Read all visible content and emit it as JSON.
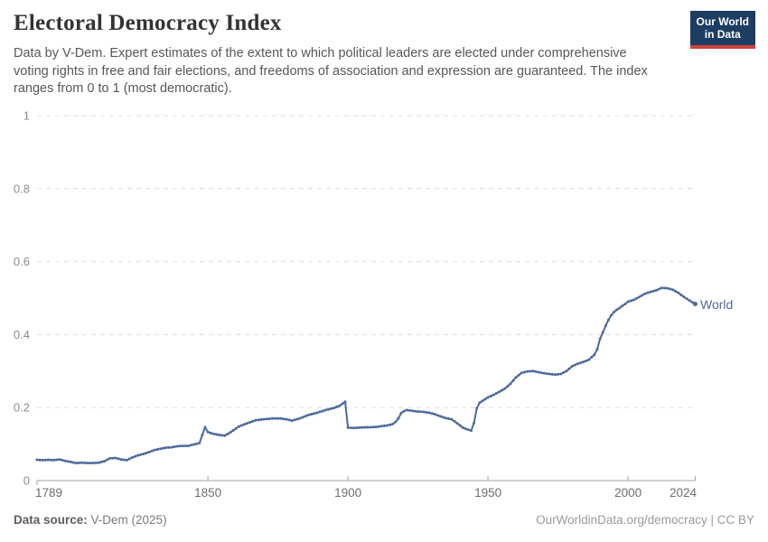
{
  "header": {
    "title": "Electoral Democracy Index",
    "subtitle": "Data by V-Dem. Expert estimates of the extent to which political leaders are elected under comprehensive voting rights in free and fair elections, and freedoms of association and expression are guaranteed. The index ranges from 0 to 1 (most democratic).",
    "logo": {
      "line1": "Our World",
      "line2": "in Data"
    }
  },
  "chart_data": {
    "type": "line",
    "title": "Electoral Democracy Index",
    "xlabel": "",
    "ylabel": "",
    "xlim": [
      1789,
      2024
    ],
    "ylim": [
      0,
      1
    ],
    "grid": "horizontal-dashed",
    "legend_position": "end-of-line",
    "x_ticks": [
      {
        "year": 1789,
        "label": "1789",
        "align": "start"
      },
      {
        "year": 1850,
        "label": "1850",
        "align": "middle"
      },
      {
        "year": 1900,
        "label": "1900",
        "align": "middle"
      },
      {
        "year": 1950,
        "label": "1950",
        "align": "middle"
      },
      {
        "year": 2000,
        "label": "2000",
        "align": "middle"
      },
      {
        "year": 2024,
        "label": "2024",
        "align": "end"
      }
    ],
    "y_ticks": [
      {
        "value": 0,
        "label": "0"
      },
      {
        "value": 0.2,
        "label": "0.2"
      },
      {
        "value": 0.4,
        "label": "0.4"
      },
      {
        "value": 0.6,
        "label": "0.6"
      },
      {
        "value": 0.8,
        "label": "0.8"
      },
      {
        "value": 1,
        "label": "1"
      }
    ],
    "series": [
      {
        "name": "World",
        "color": "#4c6a9c",
        "points": [
          [
            1789,
            0.057
          ],
          [
            1791,
            0.056
          ],
          [
            1793,
            0.057
          ],
          [
            1795,
            0.056
          ],
          [
            1797,
            0.058
          ],
          [
            1799,
            0.054
          ],
          [
            1801,
            0.051
          ],
          [
            1803,
            0.048
          ],
          [
            1805,
            0.049
          ],
          [
            1807,
            0.048
          ],
          [
            1809,
            0.048
          ],
          [
            1811,
            0.049
          ],
          [
            1813,
            0.053
          ],
          [
            1815,
            0.061
          ],
          [
            1817,
            0.062
          ],
          [
            1819,
            0.058
          ],
          [
            1821,
            0.056
          ],
          [
            1823,
            0.063
          ],
          [
            1825,
            0.069
          ],
          [
            1827,
            0.073
          ],
          [
            1829,
            0.078
          ],
          [
            1831,
            0.084
          ],
          [
            1833,
            0.087
          ],
          [
            1835,
            0.09
          ],
          [
            1837,
            0.091
          ],
          [
            1839,
            0.094
          ],
          [
            1841,
            0.095
          ],
          [
            1843,
            0.095
          ],
          [
            1845,
            0.099
          ],
          [
            1847,
            0.103
          ],
          [
            1848,
            0.125
          ],
          [
            1849,
            0.146
          ],
          [
            1850,
            0.133
          ],
          [
            1852,
            0.128
          ],
          [
            1854,
            0.125
          ],
          [
            1856,
            0.123
          ],
          [
            1858,
            0.132
          ],
          [
            1861,
            0.148
          ],
          [
            1864,
            0.157
          ],
          [
            1867,
            0.165
          ],
          [
            1870,
            0.168
          ],
          [
            1873,
            0.17
          ],
          [
            1876,
            0.17
          ],
          [
            1878,
            0.168
          ],
          [
            1880,
            0.164
          ],
          [
            1883,
            0.171
          ],
          [
            1886,
            0.18
          ],
          [
            1889,
            0.186
          ],
          [
            1892,
            0.193
          ],
          [
            1895,
            0.199
          ],
          [
            1897,
            0.205
          ],
          [
            1899,
            0.216
          ],
          [
            1900,
            0.145
          ],
          [
            1902,
            0.144
          ],
          [
            1904,
            0.145
          ],
          [
            1906,
            0.146
          ],
          [
            1908,
            0.146
          ],
          [
            1910,
            0.147
          ],
          [
            1912,
            0.149
          ],
          [
            1914,
            0.151
          ],
          [
            1916,
            0.155
          ],
          [
            1917,
            0.161
          ],
          [
            1918,
            0.17
          ],
          [
            1919,
            0.185
          ],
          [
            1920,
            0.19
          ],
          [
            1921,
            0.193
          ],
          [
            1923,
            0.191
          ],
          [
            1925,
            0.189
          ],
          [
            1927,
            0.188
          ],
          [
            1929,
            0.186
          ],
          [
            1931,
            0.182
          ],
          [
            1933,
            0.176
          ],
          [
            1935,
            0.171
          ],
          [
            1937,
            0.168
          ],
          [
            1939,
            0.157
          ],
          [
            1941,
            0.145
          ],
          [
            1943,
            0.139
          ],
          [
            1944,
            0.137
          ],
          [
            1945,
            0.158
          ],
          [
            1946,
            0.198
          ],
          [
            1947,
            0.213
          ],
          [
            1948,
            0.218
          ],
          [
            1950,
            0.228
          ],
          [
            1952,
            0.235
          ],
          [
            1954,
            0.243
          ],
          [
            1956,
            0.252
          ],
          [
            1958,
            0.265
          ],
          [
            1960,
            0.283
          ],
          [
            1962,
            0.295
          ],
          [
            1964,
            0.299
          ],
          [
            1966,
            0.3
          ],
          [
            1968,
            0.297
          ],
          [
            1970,
            0.294
          ],
          [
            1972,
            0.292
          ],
          [
            1974,
            0.29
          ],
          [
            1976,
            0.292
          ],
          [
            1978,
            0.3
          ],
          [
            1980,
            0.313
          ],
          [
            1982,
            0.32
          ],
          [
            1984,
            0.325
          ],
          [
            1986,
            0.331
          ],
          [
            1988,
            0.345
          ],
          [
            1989,
            0.36
          ],
          [
            1990,
            0.388
          ],
          [
            1991,
            0.406
          ],
          [
            1992,
            0.424
          ],
          [
            1993,
            0.44
          ],
          [
            1994,
            0.453
          ],
          [
            1995,
            0.462
          ],
          [
            1996,
            0.468
          ],
          [
            1997,
            0.473
          ],
          [
            1998,
            0.479
          ],
          [
            1999,
            0.484
          ],
          [
            2000,
            0.49
          ],
          [
            2002,
            0.495
          ],
          [
            2004,
            0.503
          ],
          [
            2006,
            0.512
          ],
          [
            2008,
            0.517
          ],
          [
            2010,
            0.521
          ],
          [
            2012,
            0.528
          ],
          [
            2014,
            0.527
          ],
          [
            2016,
            0.523
          ],
          [
            2018,
            0.514
          ],
          [
            2020,
            0.503
          ],
          [
            2022,
            0.493
          ],
          [
            2024,
            0.484
          ]
        ]
      }
    ],
    "colors": {
      "line": "#4c6a9c",
      "gridline": "#dcdcdc",
      "axis": "#a3a3a3",
      "y_tick_label": "#8c8c8c",
      "x_tick_label": "#6e6e6e"
    }
  },
  "footer": {
    "source_label": "Data source:",
    "source_value": " V-Dem (2025)",
    "credit": "OurWorldinData.org/democracy | CC BY"
  }
}
